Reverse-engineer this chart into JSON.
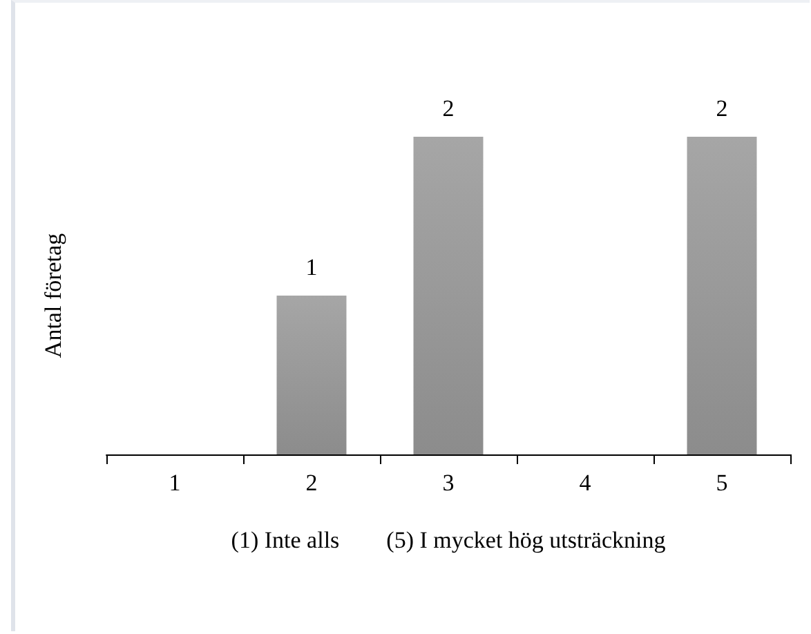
{
  "chart_data": {
    "type": "bar",
    "xlabel": "(1) Inte alls        (5) I mycket hög utsträckning",
    "ylabel": "Antal företag",
    "categories": [
      "1",
      "2",
      "3",
      "4",
      "5"
    ],
    "values": [
      0,
      1,
      2,
      0,
      2
    ],
    "value_labels": [
      null,
      "1",
      "2",
      null,
      "2"
    ],
    "color": "#a6a6a6"
  }
}
